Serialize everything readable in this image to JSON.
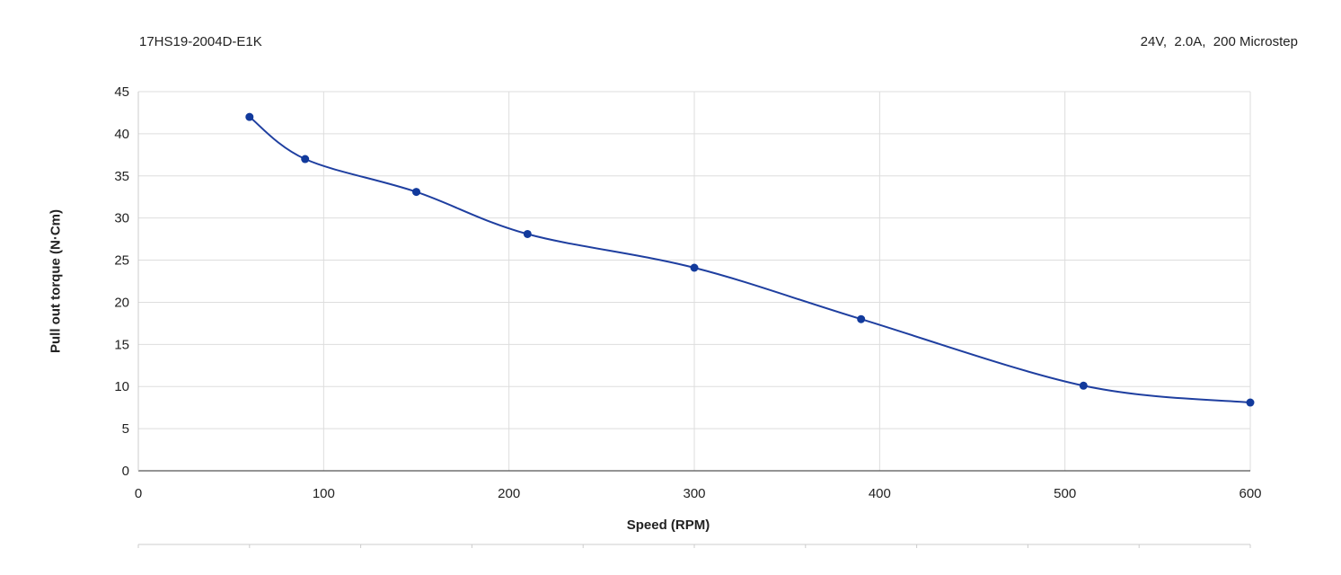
{
  "header": {
    "model": "17HS19-2004D-E1K",
    "conditions": "24V,  2.0A,  200 Microstep"
  },
  "chart_data": {
    "type": "line",
    "xlabel": "Speed (RPM)",
    "ylabel": "Pull out torque (N·Cm)",
    "xlim": [
      0,
      600
    ],
    "ylim": [
      0,
      45
    ],
    "xticks": [
      0,
      100,
      200,
      300,
      400,
      500,
      600
    ],
    "yticks": [
      0,
      5,
      10,
      15,
      20,
      25,
      30,
      35,
      40,
      45
    ],
    "grid": true,
    "colors": {
      "line": "#1f3fa0",
      "marker": "#123a9c",
      "grid": "#dddddd"
    },
    "series": [
      {
        "x": [
          60,
          90,
          150,
          210,
          300,
          390,
          510,
          600
        ],
        "y": [
          42,
          37,
          33.1,
          28.1,
          24.1,
          18,
          10.1,
          8.1
        ]
      }
    ]
  }
}
